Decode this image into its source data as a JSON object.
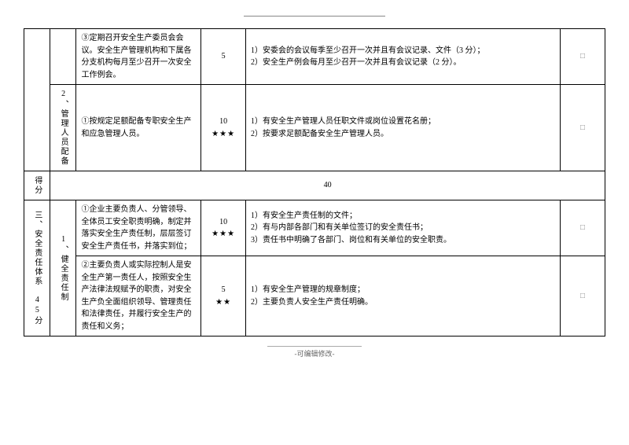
{
  "header_rule": "",
  "rows": [
    {
      "cat_left": "",
      "sub_left": "",
      "desc": "③定期召开安全生产委员会会议。安全生产管理机构和下属各分支机构每月至少召开一次安全工作例会。",
      "score": "5",
      "stars": "",
      "criteria": "1）安委会的会议每季至少召开一次并且有会议记录、文件（3 分）；\n2）安全生产例会每月至少召开一次并且有会议记录（2 分）。",
      "check": "□"
    },
    {
      "sub_left": "2、管理人员配备",
      "desc": "①按规定足额配备专职安全生产和应急管理人员。",
      "score": "10",
      "stars": "★★★",
      "criteria": "1）有安全生产管理人员任职文件或岗位设置花名册；\n2）按要求足额配备安全生产管理人员。",
      "check": "□"
    }
  ],
  "score_row": {
    "label": "得分",
    "value": "40"
  },
  "section3": {
    "cat_left": "三、安全责任体系　45分",
    "sub_left": "1、健全责任制",
    "r1": {
      "desc": "①企业主要负责人、分管领导、全体员工安全职责明确，制定并落实安全生产责任制，层层签订安全生产责任书，并落实到位；",
      "score": "10",
      "stars": "★★★",
      "criteria": "1）有安全生产责任制的文件；\n2）有与内部各部门和有关单位签订的安全责任书；\n3）责任书中明确了各部门、岗位和有关单位的安全职责。",
      "check": "□"
    },
    "r2": {
      "desc": "②主要负责人或实际控制人是安全生产第一责任人，按照安全生产法律法规赋予的职责，对安全生产负全面组织领导、管理责任和法律责任，并履行安全生产的责任和义务；",
      "score": "5",
      "stars": "★★",
      "criteria": "1）有安全生产管理的规章制度；\n2）主要负责人安全生产责任明确。",
      "check": "□"
    }
  },
  "footer": "-可编辑修改-"
}
